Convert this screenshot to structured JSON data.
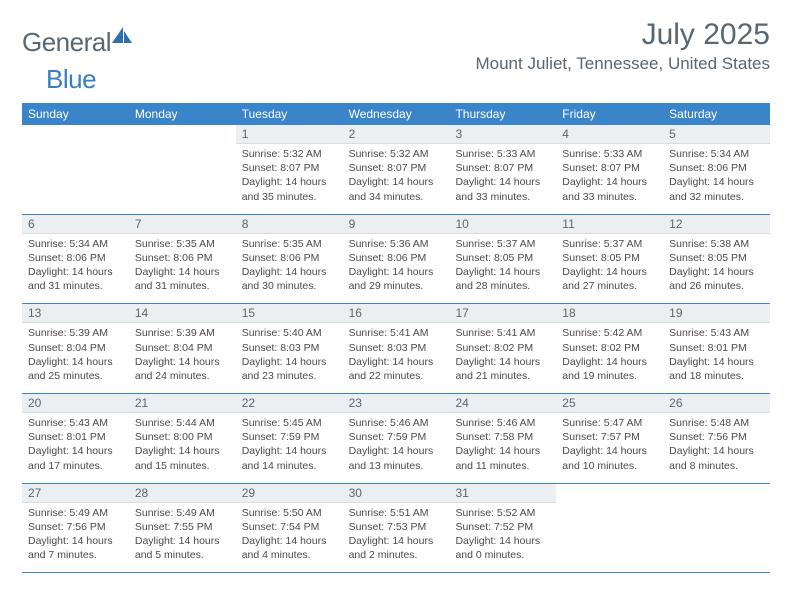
{
  "brand": {
    "text_general": "General",
    "text_blue": "Blue",
    "logo_color": "#2f6fab",
    "text_general_color": "#5a6670",
    "text_blue_color": "#3a7fc4"
  },
  "header": {
    "month_title": "July 2025",
    "location": "Mount Juliet, Tennessee, United States",
    "title_color": "#5a6670",
    "title_fontsize": 30,
    "location_fontsize": 17
  },
  "colors": {
    "header_bar": "#3a85c9",
    "header_text": "#ffffff",
    "day_number_bg": "#eceff1",
    "day_number_text": "#5a6670",
    "body_text": "#4a4a4a",
    "separator": "#3a85c9",
    "background": "#ffffff"
  },
  "day_names": [
    "Sunday",
    "Monday",
    "Tuesday",
    "Wednesday",
    "Thursday",
    "Friday",
    "Saturday"
  ],
  "weeks": [
    [
      {
        "n": "",
        "sunrise": "",
        "sunset": "",
        "daylight": ""
      },
      {
        "n": "",
        "sunrise": "",
        "sunset": "",
        "daylight": ""
      },
      {
        "n": "1",
        "sunrise": "Sunrise: 5:32 AM",
        "sunset": "Sunset: 8:07 PM",
        "daylight": "Daylight: 14 hours and 35 minutes."
      },
      {
        "n": "2",
        "sunrise": "Sunrise: 5:32 AM",
        "sunset": "Sunset: 8:07 PM",
        "daylight": "Daylight: 14 hours and 34 minutes."
      },
      {
        "n": "3",
        "sunrise": "Sunrise: 5:33 AM",
        "sunset": "Sunset: 8:07 PM",
        "daylight": "Daylight: 14 hours and 33 minutes."
      },
      {
        "n": "4",
        "sunrise": "Sunrise: 5:33 AM",
        "sunset": "Sunset: 8:07 PM",
        "daylight": "Daylight: 14 hours and 33 minutes."
      },
      {
        "n": "5",
        "sunrise": "Sunrise: 5:34 AM",
        "sunset": "Sunset: 8:06 PM",
        "daylight": "Daylight: 14 hours and 32 minutes."
      }
    ],
    [
      {
        "n": "6",
        "sunrise": "Sunrise: 5:34 AM",
        "sunset": "Sunset: 8:06 PM",
        "daylight": "Daylight: 14 hours and 31 minutes."
      },
      {
        "n": "7",
        "sunrise": "Sunrise: 5:35 AM",
        "sunset": "Sunset: 8:06 PM",
        "daylight": "Daylight: 14 hours and 31 minutes."
      },
      {
        "n": "8",
        "sunrise": "Sunrise: 5:35 AM",
        "sunset": "Sunset: 8:06 PM",
        "daylight": "Daylight: 14 hours and 30 minutes."
      },
      {
        "n": "9",
        "sunrise": "Sunrise: 5:36 AM",
        "sunset": "Sunset: 8:06 PM",
        "daylight": "Daylight: 14 hours and 29 minutes."
      },
      {
        "n": "10",
        "sunrise": "Sunrise: 5:37 AM",
        "sunset": "Sunset: 8:05 PM",
        "daylight": "Daylight: 14 hours and 28 minutes."
      },
      {
        "n": "11",
        "sunrise": "Sunrise: 5:37 AM",
        "sunset": "Sunset: 8:05 PM",
        "daylight": "Daylight: 14 hours and 27 minutes."
      },
      {
        "n": "12",
        "sunrise": "Sunrise: 5:38 AM",
        "sunset": "Sunset: 8:05 PM",
        "daylight": "Daylight: 14 hours and 26 minutes."
      }
    ],
    [
      {
        "n": "13",
        "sunrise": "Sunrise: 5:39 AM",
        "sunset": "Sunset: 8:04 PM",
        "daylight": "Daylight: 14 hours and 25 minutes."
      },
      {
        "n": "14",
        "sunrise": "Sunrise: 5:39 AM",
        "sunset": "Sunset: 8:04 PM",
        "daylight": "Daylight: 14 hours and 24 minutes."
      },
      {
        "n": "15",
        "sunrise": "Sunrise: 5:40 AM",
        "sunset": "Sunset: 8:03 PM",
        "daylight": "Daylight: 14 hours and 23 minutes."
      },
      {
        "n": "16",
        "sunrise": "Sunrise: 5:41 AM",
        "sunset": "Sunset: 8:03 PM",
        "daylight": "Daylight: 14 hours and 22 minutes."
      },
      {
        "n": "17",
        "sunrise": "Sunrise: 5:41 AM",
        "sunset": "Sunset: 8:02 PM",
        "daylight": "Daylight: 14 hours and 21 minutes."
      },
      {
        "n": "18",
        "sunrise": "Sunrise: 5:42 AM",
        "sunset": "Sunset: 8:02 PM",
        "daylight": "Daylight: 14 hours and 19 minutes."
      },
      {
        "n": "19",
        "sunrise": "Sunrise: 5:43 AM",
        "sunset": "Sunset: 8:01 PM",
        "daylight": "Daylight: 14 hours and 18 minutes."
      }
    ],
    [
      {
        "n": "20",
        "sunrise": "Sunrise: 5:43 AM",
        "sunset": "Sunset: 8:01 PM",
        "daylight": "Daylight: 14 hours and 17 minutes."
      },
      {
        "n": "21",
        "sunrise": "Sunrise: 5:44 AM",
        "sunset": "Sunset: 8:00 PM",
        "daylight": "Daylight: 14 hours and 15 minutes."
      },
      {
        "n": "22",
        "sunrise": "Sunrise: 5:45 AM",
        "sunset": "Sunset: 7:59 PM",
        "daylight": "Daylight: 14 hours and 14 minutes."
      },
      {
        "n": "23",
        "sunrise": "Sunrise: 5:46 AM",
        "sunset": "Sunset: 7:59 PM",
        "daylight": "Daylight: 14 hours and 13 minutes."
      },
      {
        "n": "24",
        "sunrise": "Sunrise: 5:46 AM",
        "sunset": "Sunset: 7:58 PM",
        "daylight": "Daylight: 14 hours and 11 minutes."
      },
      {
        "n": "25",
        "sunrise": "Sunrise: 5:47 AM",
        "sunset": "Sunset: 7:57 PM",
        "daylight": "Daylight: 14 hours and 10 minutes."
      },
      {
        "n": "26",
        "sunrise": "Sunrise: 5:48 AM",
        "sunset": "Sunset: 7:56 PM",
        "daylight": "Daylight: 14 hours and 8 minutes."
      }
    ],
    [
      {
        "n": "27",
        "sunrise": "Sunrise: 5:49 AM",
        "sunset": "Sunset: 7:56 PM",
        "daylight": "Daylight: 14 hours and 7 minutes."
      },
      {
        "n": "28",
        "sunrise": "Sunrise: 5:49 AM",
        "sunset": "Sunset: 7:55 PM",
        "daylight": "Daylight: 14 hours and 5 minutes."
      },
      {
        "n": "29",
        "sunrise": "Sunrise: 5:50 AM",
        "sunset": "Sunset: 7:54 PM",
        "daylight": "Daylight: 14 hours and 4 minutes."
      },
      {
        "n": "30",
        "sunrise": "Sunrise: 5:51 AM",
        "sunset": "Sunset: 7:53 PM",
        "daylight": "Daylight: 14 hours and 2 minutes."
      },
      {
        "n": "31",
        "sunrise": "Sunrise: 5:52 AM",
        "sunset": "Sunset: 7:52 PM",
        "daylight": "Daylight: 14 hours and 0 minutes."
      },
      {
        "n": "",
        "sunrise": "",
        "sunset": "",
        "daylight": ""
      },
      {
        "n": "",
        "sunrise": "",
        "sunset": "",
        "daylight": ""
      }
    ]
  ]
}
